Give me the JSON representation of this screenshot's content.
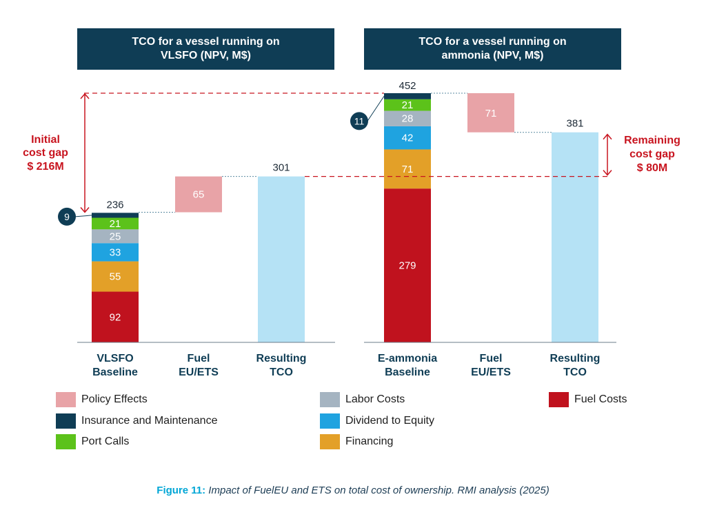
{
  "caption": {
    "label": "Figure 11:",
    "text": " Impact of FuelEU and ETS on total cost of ownership. RMI analysis (2025)"
  },
  "colors": {
    "fuel_costs": "#c0121e",
    "financing": "#e3a028",
    "dividend": "#1fa3e0",
    "labor": "#a5b4c1",
    "port_calls": "#5cc21a",
    "insurance": "#0f3d55",
    "policy": "#e8a3a7",
    "resulting": "#b5e2f5",
    "gap_line": "#c8141f"
  },
  "chart_data": [
    {
      "type": "bar",
      "stacking": "waterfall",
      "title": "TCO for a vessel running on VLSFO (NPV, M$)",
      "unit": "NPV, M$",
      "categories": [
        "VLSFO Baseline",
        "Fuel EU/ETS",
        "Resulting TCO"
      ],
      "baseline_stack": [
        {
          "name": "Fuel Costs",
          "value": 92
        },
        {
          "name": "Financing",
          "value": 55
        },
        {
          "name": "Dividend to Equity",
          "value": 33
        },
        {
          "name": "Labor Costs",
          "value": 25
        },
        {
          "name": "Port Calls",
          "value": 21
        },
        {
          "name": "Insurance and Maintenance",
          "value": 9
        }
      ],
      "baseline_total": 236,
      "policy_effect": 65,
      "resulting_total": 301,
      "annotation": {
        "label_line1": "Initial",
        "label_line2": "cost gap",
        "label_line3": "$ 216M",
        "value": 216
      }
    },
    {
      "type": "bar",
      "stacking": "waterfall",
      "title": "TCO for a vessel running on ammonia (NPV, M$)",
      "unit": "NPV, M$",
      "categories": [
        "E-ammonia Baseline",
        "Fuel EU/ETS",
        "Resulting TCO"
      ],
      "baseline_stack": [
        {
          "name": "Fuel Costs",
          "value": 279
        },
        {
          "name": "Financing",
          "value": 71
        },
        {
          "name": "Dividend to Equity",
          "value": 42
        },
        {
          "name": "Labor Costs",
          "value": 28
        },
        {
          "name": "Port Calls",
          "value": 21
        },
        {
          "name": "Insurance and Maintenance",
          "value": 11
        }
      ],
      "baseline_total": 452,
      "policy_effect": -71,
      "resulting_total": 381,
      "annotation": {
        "label_line1": "Remaining",
        "label_line2": "cost gap",
        "label_line3": "$ 80M",
        "value": 80
      }
    }
  ],
  "headers": {
    "left": "TCO for a vessel running on VLSFO (NPV, M$)",
    "right": "TCO for a vessel running on ammonia (NPV, M$)"
  },
  "axis_labels": {
    "left": [
      [
        "VLSFO",
        "Baseline"
      ],
      [
        "Fuel",
        "EU/ETS"
      ],
      [
        "Resulting",
        "TCO"
      ]
    ],
    "right": [
      [
        "E-ammonia",
        "Baseline"
      ],
      [
        "Fuel",
        "EU/ETS"
      ],
      [
        "Resulting",
        "TCO"
      ]
    ]
  },
  "legend": [
    {
      "label": "Policy Effects",
      "color_key": "policy"
    },
    {
      "label": "Insurance and Maintenance",
      "color_key": "insurance"
    },
    {
      "label": "Port Calls",
      "color_key": "port_calls"
    },
    {
      "label": "Labor Costs",
      "color_key": "labor"
    },
    {
      "label": "Dividend to Equity",
      "color_key": "dividend"
    },
    {
      "label": "Financing",
      "color_key": "financing"
    },
    {
      "label": "Fuel Costs",
      "color_key": "fuel_costs"
    }
  ]
}
